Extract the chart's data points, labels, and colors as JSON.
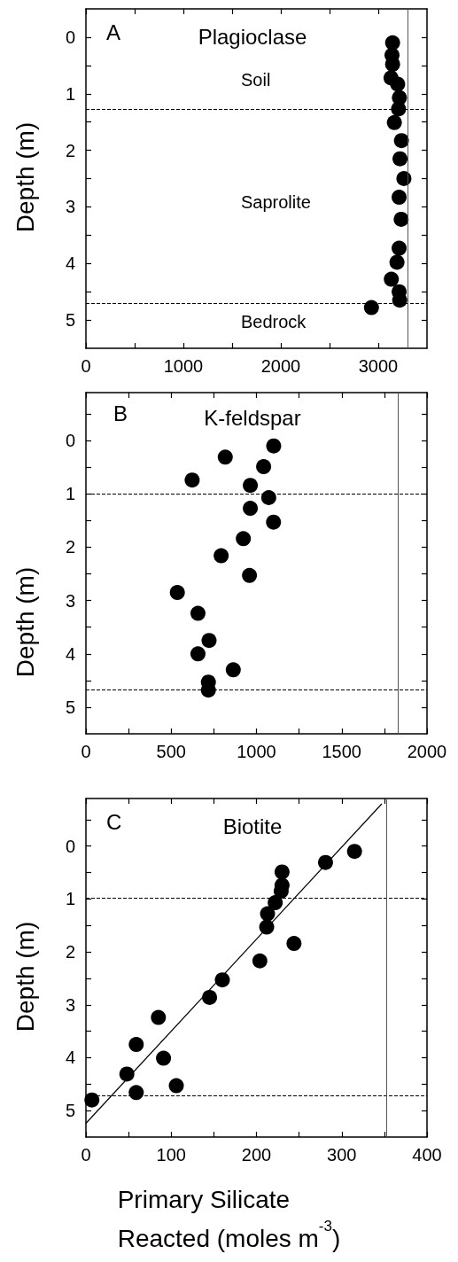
{
  "chart_data": [
    {
      "type": "scatter",
      "title": "Plagioclase",
      "ylabel": "Depth (m)",
      "marker": "circle",
      "xlim": [
        0,
        3500
      ],
      "xticks": [
        0,
        {
          "value": 500,
          "label": null
        },
        1000,
        {
          "value": 1500,
          "label": null
        },
        2000,
        {
          "value": 2500,
          "label": null
        },
        3000
      ],
      "ylim": [
        5.5,
        -0.5
      ],
      "yticks": [
        0,
        {
          "value": 0.5,
          "label": null
        },
        1,
        {
          "value": 1.5,
          "label": null
        },
        2,
        {
          "value": 2.5,
          "label": null
        },
        3,
        {
          "value": 3.5,
          "label": null
        },
        4,
        {
          "value": 4.5,
          "label": null
        },
        5
      ],
      "series": [
        {
          "color": "#000000",
          "x": [
            3147,
            3141,
            3147,
            3131,
            3199,
            3217,
            3208,
            3165,
            3238,
            3223,
            3263,
            3214,
            3235,
            3214,
            3192,
            3134,
            3214,
            3220,
            2930
          ],
          "values": [
            0.1,
            0.32,
            0.48,
            0.72,
            0.83,
            1.07,
            1.27,
            1.51,
            1.83,
            2.15,
            2.5,
            2.83,
            3.22,
            3.73,
            3.98,
            4.28,
            4.5,
            4.65,
            4.78
          ]
        }
      ],
      "ref_lines": [
        {
          "axis": "y",
          "value": 1.28,
          "color": "#000000",
          "line_style": "dashed"
        },
        {
          "axis": "y",
          "value": 4.71,
          "color": "#000000",
          "line_style": "dashed"
        },
        {
          "axis": "x",
          "value": 3300,
          "color": "#555555",
          "line_style": "solid"
        }
      ],
      "annotations": [
        "A",
        "Soil",
        "Saprolite",
        "Bedrock"
      ]
    },
    {
      "type": "scatter",
      "title": "K-feldspar",
      "ylabel": "Depth (m)",
      "marker": "circle",
      "xlim": [
        0,
        2000
      ],
      "xticks": [
        0,
        {
          "value": 250,
          "label": null
        },
        500,
        {
          "value": 750,
          "label": null
        },
        1000,
        {
          "value": 1250,
          "label": null
        },
        1500,
        {
          "value": 1750,
          "label": null
        },
        2000
      ],
      "ylim": [
        5.5,
        -0.9
      ],
      "yticks": [
        {
          "value": -0.5,
          "label": null
        },
        0,
        {
          "value": 0.5,
          "label": null
        },
        1,
        {
          "value": 1.5,
          "label": null
        },
        2,
        {
          "value": 2.5,
          "label": null
        },
        3,
        {
          "value": 3.5,
          "label": null
        },
        4,
        {
          "value": 4.5,
          "label": null
        },
        5
      ],
      "series": [
        {
          "color": "#000000",
          "x": [
            1101,
            817,
            1042,
            623,
            964,
            1072,
            964,
            1100,
            923,
            793,
            959,
            536,
            657,
            722,
            657,
            864,
            718,
            718
          ],
          "values": [
            0.1,
            0.31,
            0.49,
            0.74,
            0.84,
            1.07,
            1.27,
            1.53,
            1.84,
            2.16,
            2.53,
            2.85,
            3.24,
            3.75,
            4.0,
            4.3,
            4.53,
            4.68
          ]
        }
      ],
      "ref_lines": [
        {
          "axis": "y",
          "value": 1.0,
          "color": "#000000",
          "line_style": "dashed"
        },
        {
          "axis": "y",
          "value": 4.68,
          "color": "#000000",
          "line_style": "dashed"
        },
        {
          "axis": "x",
          "value": 1830,
          "color": "#555555",
          "line_style": "solid"
        }
      ],
      "annotations": [
        "B"
      ]
    },
    {
      "type": "scatter",
      "title": "Biotite",
      "ylabel": "Depth (m)",
      "xlabel": "Primary Silicate\nReacted (moles m$^{-3}$)",
      "xlim": [
        0,
        400
      ],
      "xticks": [
        0,
        {
          "value": 50,
          "label": null
        },
        100,
        {
          "value": 150,
          "label": null
        },
        200,
        {
          "value": 250,
          "label": null
        },
        300,
        {
          "value": 350,
          "label": null
        },
        400
      ],
      "ylim": [
        5.5,
        -0.9
      ],
      "yticks": [
        {
          "value": -0.5,
          "label": null
        },
        0,
        {
          "value": 0.5,
          "label": null
        },
        1,
        {
          "value": 1.5,
          "label": null
        },
        2,
        {
          "value": 2.5,
          "label": null
        },
        3,
        {
          "value": 3.5,
          "label": null
        },
        4,
        {
          "value": 4.5,
          "label": null
        },
        5
      ],
      "series": [
        {
          "marker": "circle",
          "color": "#000000",
          "x": [
            315,
            281,
            230,
            230,
            229,
            222,
            213,
            212,
            244,
            204,
            160,
            145,
            85,
            59,
            91,
            48,
            106,
            59,
            7
          ],
          "values": [
            0.1,
            0.31,
            0.49,
            0.74,
            0.85,
            1.07,
            1.28,
            1.53,
            1.84,
            2.17,
            2.53,
            2.86,
            3.24,
            3.75,
            4.01,
            4.31,
            4.53,
            4.66,
            4.8
          ]
        },
        {
          "type": "line",
          "marker": "none",
          "color": "#000000",
          "x": [
            0,
            347
          ],
          "values": [
            5.24,
            -0.8
          ]
        }
      ],
      "ref_lines": [
        {
          "axis": "y",
          "value": 0.98,
          "color": "#000000",
          "line_style": "dashed"
        },
        {
          "axis": "y",
          "value": 4.71,
          "color": "#000000",
          "line_style": "dashed"
        },
        {
          "axis": "x",
          "value": 352,
          "color": "#555555",
          "line_style": "solid"
        }
      ],
      "annotations": [
        "C"
      ]
    }
  ]
}
